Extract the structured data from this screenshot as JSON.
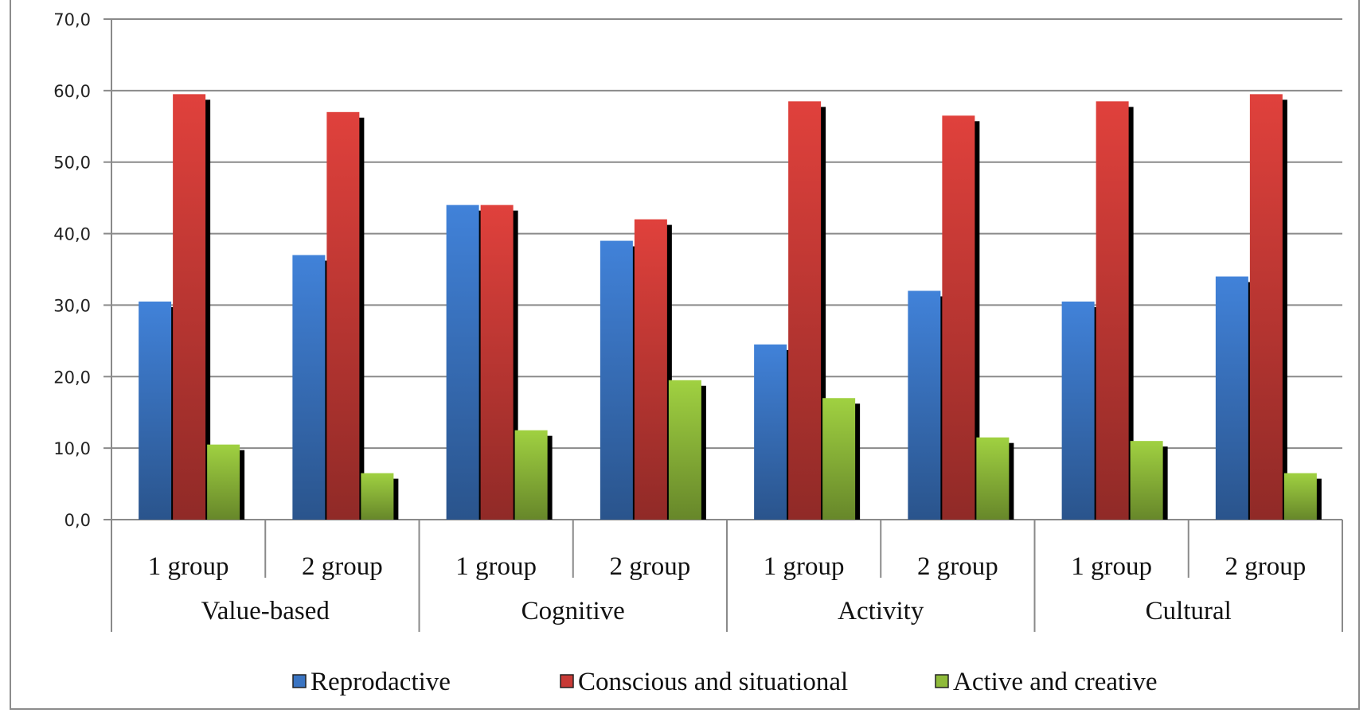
{
  "chart_data": {
    "type": "bar",
    "title": "",
    "xlabel": "",
    "ylabel": "",
    "ylim": [
      0,
      70
    ],
    "yticks": [
      "0,0",
      "10,0",
      "20,0",
      "30,0",
      "40,0",
      "50,0",
      "60,0",
      "70,0"
    ],
    "grid": true,
    "legend_position": "bottom",
    "category_groups": [
      "Value-based",
      "Cognitive",
      "Activity",
      "Cultural"
    ],
    "categories": [
      "1 group",
      "2 group",
      "1 group",
      "2 group",
      "1 group",
      "2 group",
      "1 group",
      "2 group"
    ],
    "series": [
      {
        "name": "Reprodactive",
        "color": "#3a74c2",
        "values": [
          30.5,
          37.0,
          44.0,
          39.0,
          24.5,
          32.0,
          30.5,
          34.0
        ]
      },
      {
        "name": "Conscious and situational",
        "color": "#c83a36",
        "values": [
          59.5,
          57.0,
          44.0,
          42.0,
          58.5,
          56.5,
          58.5,
          59.5
        ]
      },
      {
        "name": "Active and creative",
        "color": "#8fbb3a",
        "values": [
          10.5,
          6.5,
          12.5,
          19.5,
          17.0,
          11.5,
          11.0,
          6.5
        ]
      }
    ]
  }
}
